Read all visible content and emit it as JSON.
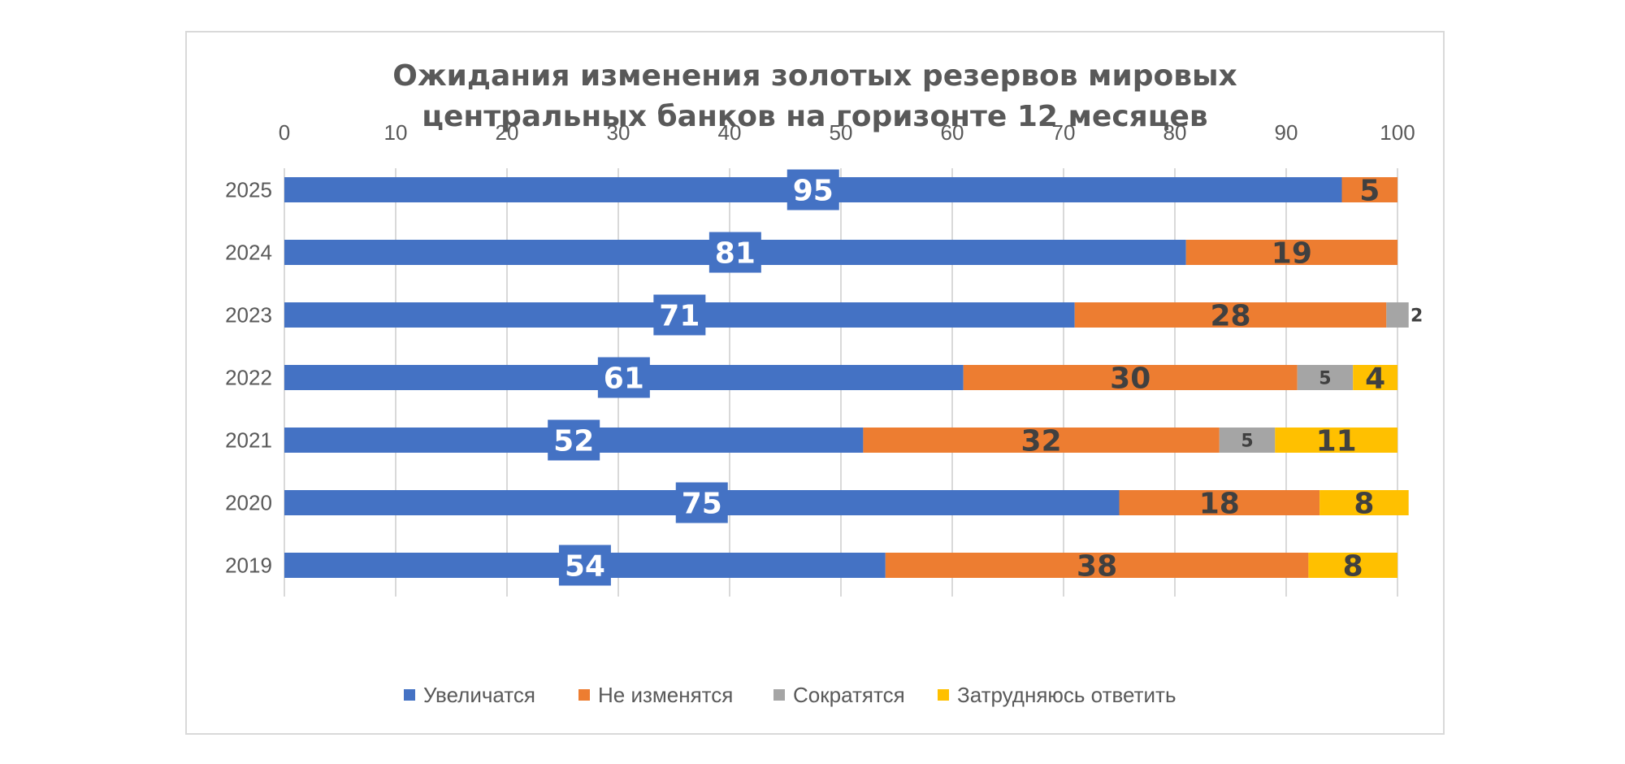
{
  "chart_data": {
    "type": "bar",
    "orientation": "horizontal",
    "stacked": true,
    "title": [
      "Ожидания изменения золотых резервов мировых",
      "центральных банков на горизонте 12 месяцев"
    ],
    "categories": [
      "2025",
      "2024",
      "2023",
      "2022",
      "2021",
      "2020",
      "2019"
    ],
    "series": [
      {
        "name": "Увеличатся",
        "color": "#4472c4",
        "values": [
          95,
          81,
          71,
          61,
          52,
          75,
          54
        ]
      },
      {
        "name": "Не изменятся",
        "color": "#ed7d31",
        "values": [
          5,
          19,
          28,
          30,
          32,
          18,
          38
        ]
      },
      {
        "name": "Сократятся",
        "color": "#a5a5a5",
        "values": [
          0,
          0,
          2,
          5,
          5,
          0,
          0
        ]
      },
      {
        "name": "Затрудняюсь ответить",
        "color": "#ffc000",
        "values": [
          0,
          0,
          0,
          4,
          11,
          8,
          8
        ]
      }
    ],
    "xlim": [
      0,
      100
    ],
    "xticks": [
      "0",
      "10",
      "20",
      "30",
      "40",
      "50",
      "60",
      "70",
      "80",
      "90",
      "100"
    ],
    "xaxis_position": "top",
    "grid": true,
    "legend_position": "bottom"
  }
}
